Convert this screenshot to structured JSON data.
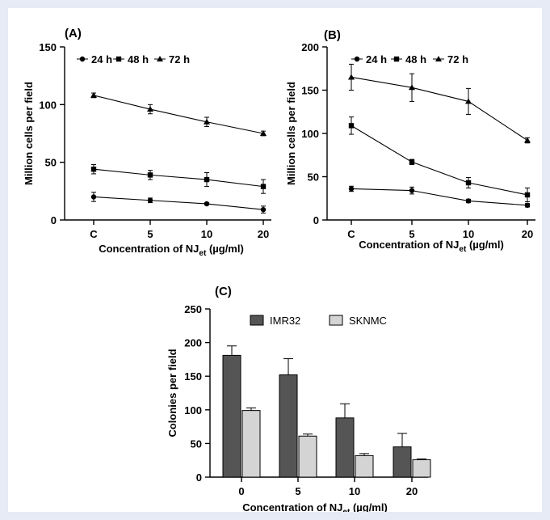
{
  "chart_data": [
    {
      "type": "line",
      "panel_label": "(A)",
      "categories": [
        "C",
        "5",
        "10",
        "20"
      ],
      "series": [
        {
          "name": "24 h",
          "marker": "circle",
          "values": [
            20,
            17,
            14,
            9
          ],
          "errors": [
            4,
            2,
            1,
            3
          ]
        },
        {
          "name": "48 h",
          "marker": "square",
          "values": [
            44,
            39,
            35,
            29
          ],
          "errors": [
            4,
            4,
            6,
            6
          ]
        },
        {
          "name": "72 h",
          "marker": "triangle",
          "values": [
            108,
            96,
            85,
            75
          ],
          "errors": [
            2,
            4,
            4,
            2
          ]
        }
      ],
      "xlabel": "Concentration of NJ",
      "xlabel_sub": "et",
      "xlabel_unit": " (µg/ml)",
      "ylabel": "Million cells  per field",
      "ylim": [
        0,
        150
      ],
      "yticks": [
        0,
        50,
        100,
        150
      ],
      "legend_position": "top"
    },
    {
      "type": "line",
      "panel_label": "(B)",
      "categories": [
        "C",
        "5",
        "10",
        "20"
      ],
      "series": [
        {
          "name": "24 h",
          "marker": "circle",
          "values": [
            36,
            34,
            22,
            17
          ],
          "errors": [
            3,
            4,
            2,
            2
          ]
        },
        {
          "name": "48 h",
          "marker": "square",
          "values": [
            109,
            67,
            43,
            29
          ],
          "errors": [
            10,
            3,
            6,
            8
          ]
        },
        {
          "name": "72 h",
          "marker": "triangle",
          "values": [
            165,
            153,
            137,
            92
          ],
          "errors": [
            15,
            16,
            15,
            3
          ]
        }
      ],
      "xlabel": "Concentration of NJ",
      "xlabel_sub": "et",
      "xlabel_unit": " (µg/ml)",
      "ylabel": "Million cells  per field",
      "ylim": [
        0,
        200
      ],
      "yticks": [
        0,
        50,
        100,
        150,
        200
      ],
      "legend_position": "top"
    },
    {
      "type": "bar",
      "panel_label": "(C)",
      "categories": [
        "0",
        "5",
        "10",
        "20"
      ],
      "series": [
        {
          "name": "IMR32",
          "color": "#555555",
          "values": [
            181,
            152,
            88,
            45
          ],
          "errors": [
            14,
            24,
            21,
            20
          ]
        },
        {
          "name": "SKNMC",
          "color": "#d4d4d4",
          "values": [
            99,
            61,
            32,
            26
          ],
          "errors": [
            4,
            3,
            3,
            1
          ]
        }
      ],
      "xlabel": "Concentration of NJ",
      "xlabel_sub": "et",
      "xlabel_unit": " (µg/ml)",
      "ylabel": "Colonies  per field",
      "ylim": [
        0,
        250
      ],
      "yticks": [
        0,
        50,
        100,
        150,
        200,
        250
      ],
      "legend_position": "top"
    }
  ]
}
